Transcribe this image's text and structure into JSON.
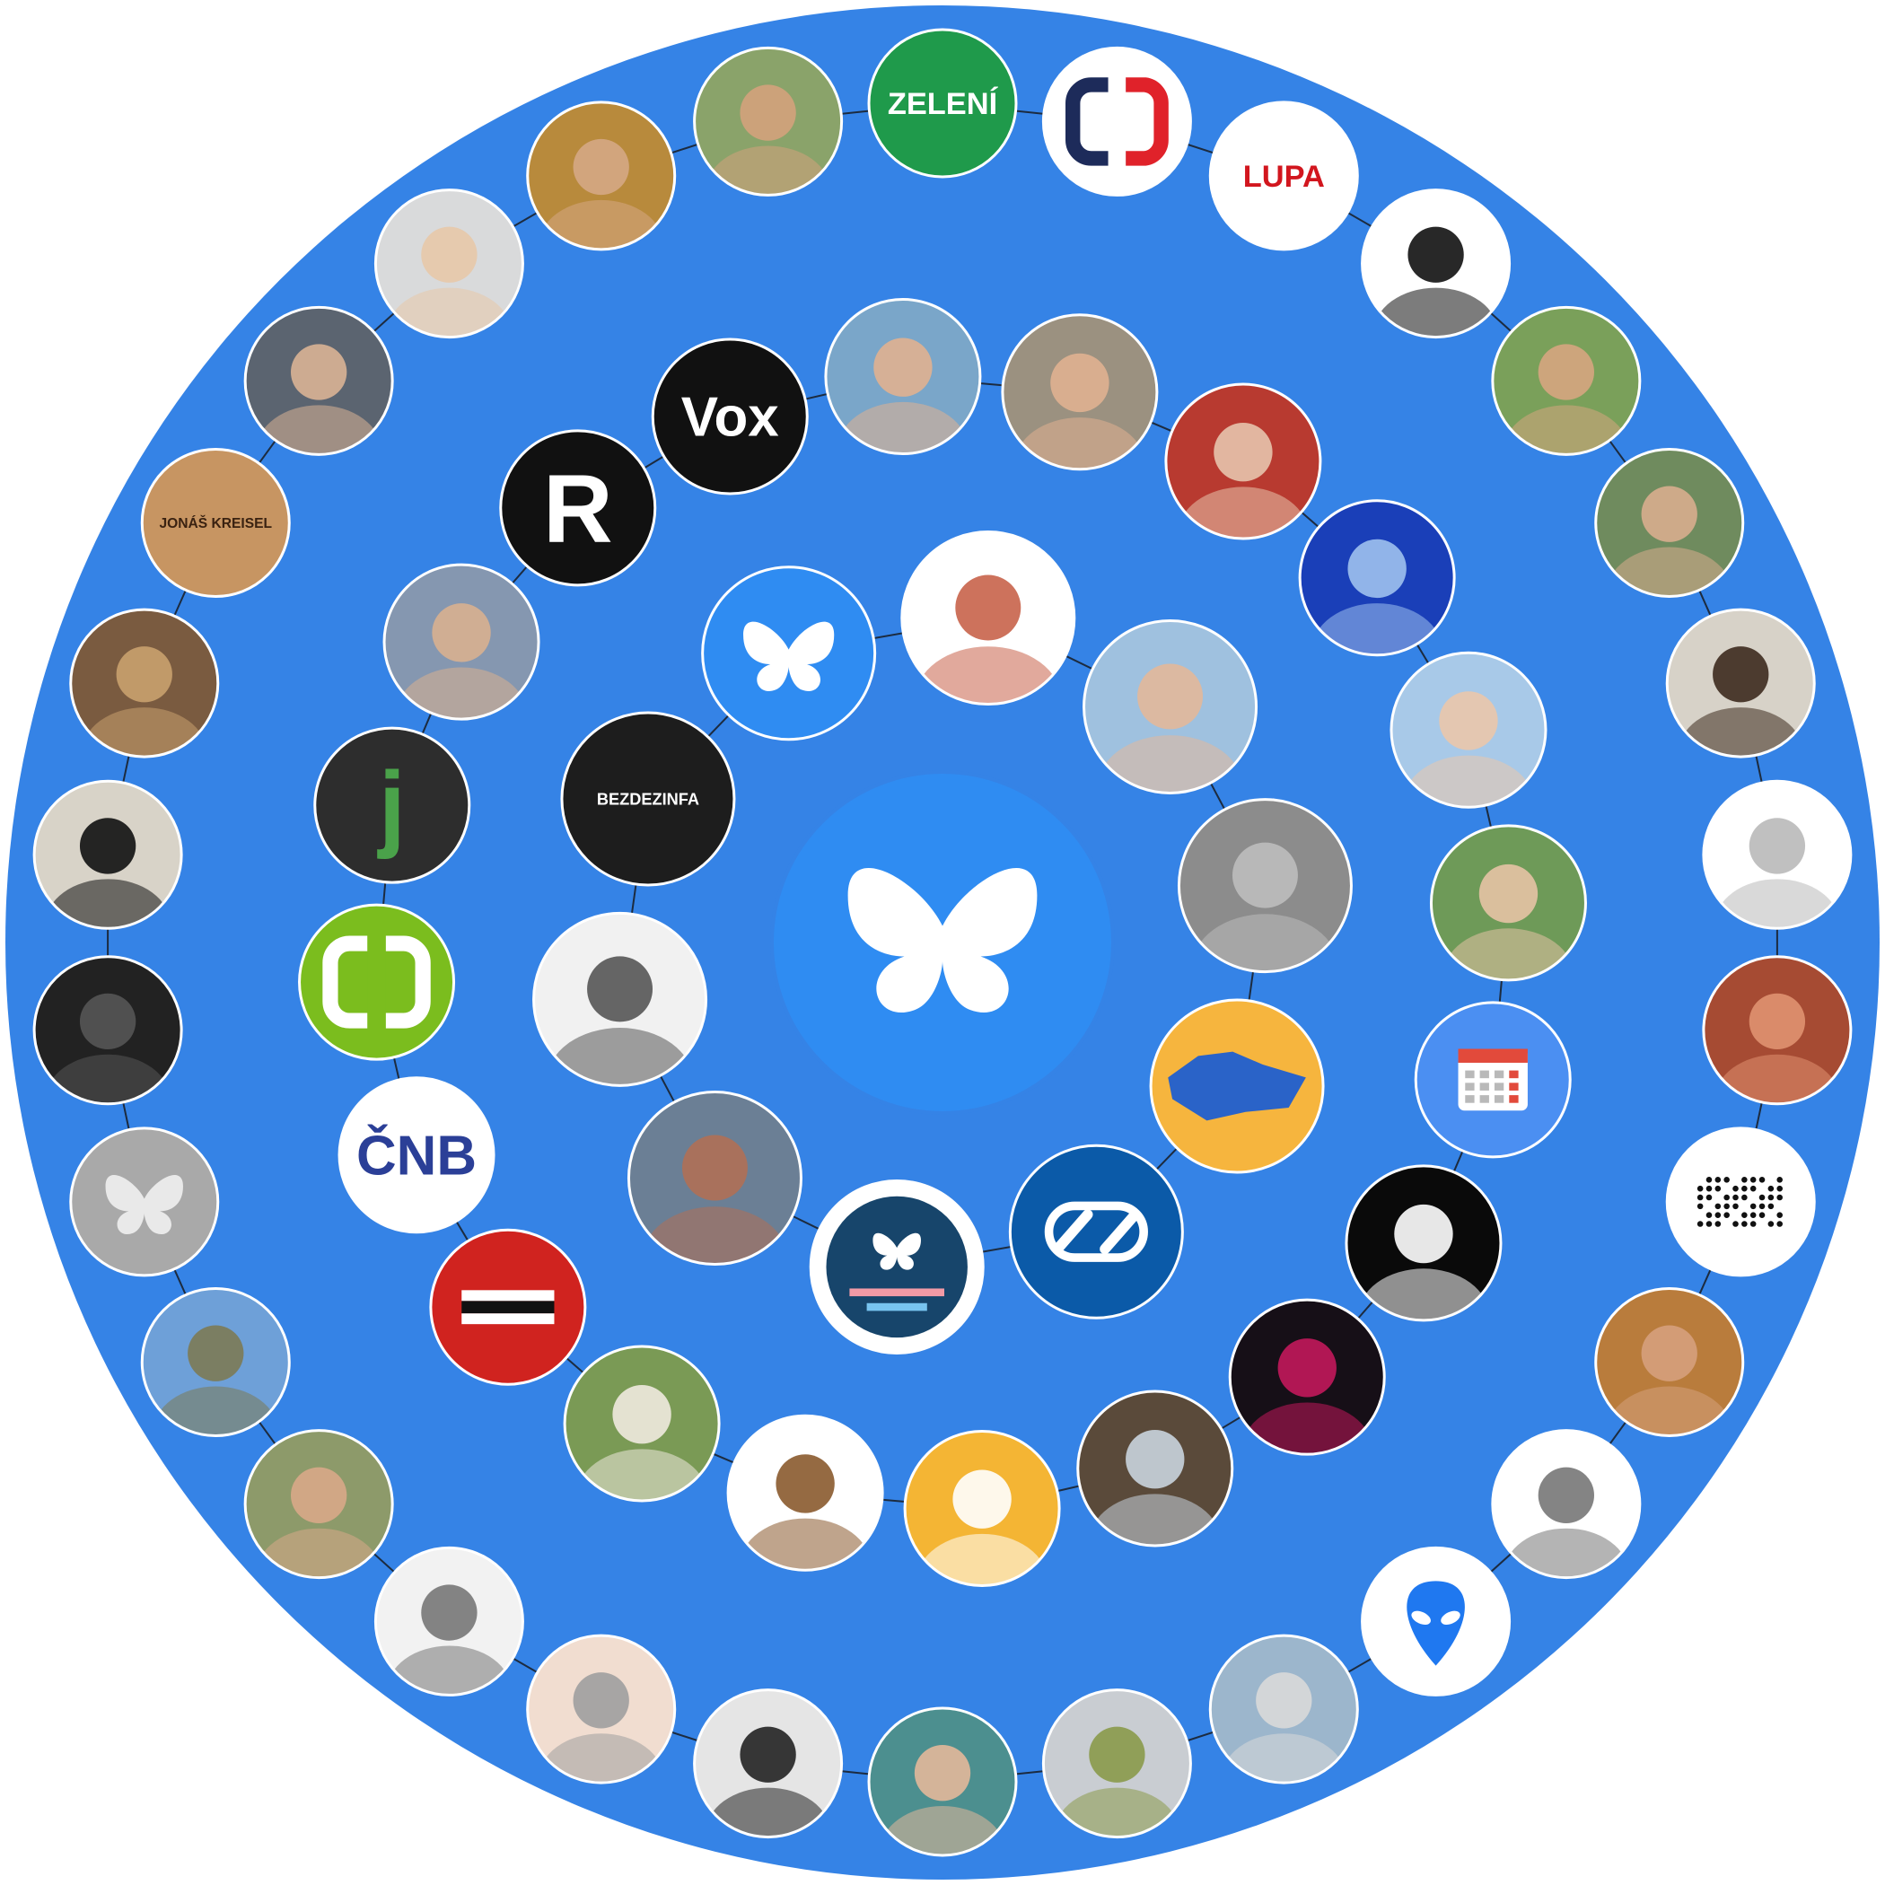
{
  "colors": {
    "background": "#ffffff",
    "disc": "#3583e6",
    "link": "#1c2b3f",
    "avatar_border": "#ffffff"
  },
  "center": {
    "name": "bluesky-center",
    "icon": "butterfly-icon"
  },
  "rings": [
    {
      "name": "inner-ring",
      "avatars": [
        {
          "id": "bluesky-logo",
          "kind": "butterfly",
          "bg": "#2f8cf2",
          "fg": "#ffffff"
        },
        {
          "id": "cartoon-cat",
          "kind": "photo",
          "bg": "#ffffff",
          "fg": "#c8634a"
        },
        {
          "id": "man-striped-shirt",
          "kind": "photo",
          "bg": "#9fc1df",
          "fg": "#e2b89a"
        },
        {
          "id": "manhole-cover",
          "kind": "photo",
          "bg": "#8c8c8c",
          "fg": "#bcbcbc"
        },
        {
          "id": "czech-map",
          "kind": "map",
          "bg": "#f6b53e",
          "fg": "#2a63c8"
        },
        {
          "id": "link-arrows",
          "kind": "arrows",
          "bg": "#0b5aa8",
          "fg": "#ffffff"
        },
        {
          "id": "blue-sky-badge",
          "kind": "badge",
          "bg": "#ffffff",
          "fg": "#17456b"
        },
        {
          "id": "pixel-face",
          "kind": "photo",
          "bg": "#6b7f95",
          "fg": "#b07055"
        },
        {
          "id": "bearded-man-bw",
          "kind": "photo",
          "bg": "#f1f1f1",
          "fg": "#555555"
        },
        {
          "id": "bezdezinfa",
          "kind": "text",
          "bg": "#1d1d1d",
          "fg": "#ffffff",
          "text": "BEZDEZINFA"
        }
      ]
    },
    {
      "name": "middle-ring",
      "avatars": [
        {
          "id": "vox",
          "kind": "text",
          "bg": "#111111",
          "fg": "#ffffff",
          "text": "Vox"
        },
        {
          "id": "man-red-eyes",
          "kind": "photo",
          "bg": "#7aa6c9",
          "fg": "#e0b190"
        },
        {
          "id": "man-railway",
          "kind": "photo",
          "bg": "#9b9180",
          "fg": "#e0b190"
        },
        {
          "id": "red-hair-woman",
          "kind": "photo",
          "bg": "#b83a30",
          "fg": "#e7c4ad"
        },
        {
          "id": "ram-glitter",
          "kind": "photo",
          "bg": "#1a3fb8",
          "fg": "#9fc1ee"
        },
        {
          "id": "young-man-long-hair",
          "kind": "photo",
          "bg": "#a8c9e8",
          "fg": "#eac7ab"
        },
        {
          "id": "woman-blue-dress",
          "kind": "photo",
          "bg": "#6e9a58",
          "fg": "#e6c3a5"
        },
        {
          "id": "calendar",
          "kind": "calendar",
          "bg": "#4b8ff2",
          "fg": "#ffffff"
        },
        {
          "id": "bird-emblem",
          "kind": "photo",
          "bg": "#0a0a0a",
          "fg": "#ffffff"
        },
        {
          "id": "anime-girl",
          "kind": "photo",
          "bg": "#160f17",
          "fg": "#c2185b"
        },
        {
          "id": "dino-eye",
          "kind": "photo",
          "bg": "#5a4a3a",
          "fg": "#c9d4de"
        },
        {
          "id": "beret-cartoon",
          "kind": "photo",
          "bg": "#f4b534",
          "fg": "#ffffff"
        },
        {
          "id": "hedgehog-cartoon",
          "kind": "photo",
          "bg": "#ffffff",
          "fg": "#8a5a2e"
        },
        {
          "id": "white-goat",
          "kind": "photo",
          "bg": "#7a9a55",
          "fg": "#efeadf"
        },
        {
          "id": "equals-flag",
          "kind": "equals",
          "bg": "#d0231f",
          "fg": "#ffffff"
        },
        {
          "id": "cnb",
          "kind": "text",
          "bg": "#ffffff",
          "fg": "#2b3f97",
          "text": "ČNB"
        },
        {
          "id": "ct-green",
          "kind": "ct",
          "bg": "#7bbd1e",
          "fg": "#ffffff"
        },
        {
          "id": "arrow-j",
          "kind": "text",
          "bg": "#2d2d2d",
          "fg": "#4aa24a",
          "text": "j"
        },
        {
          "id": "man-beanie",
          "kind": "photo",
          "bg": "#8597b0",
          "fg": "#d8b090"
        },
        {
          "id": "r-logo",
          "kind": "text",
          "bg": "#111111",
          "fg": "#ffffff",
          "text": "R"
        }
      ]
    },
    {
      "name": "outer-ring",
      "avatars": [
        {
          "id": "zeleni",
          "kind": "text",
          "bg": "#1f9a4b",
          "fg": "#ffffff",
          "text": "ZELENÍ"
        },
        {
          "id": "ct-tv",
          "kind": "ct",
          "bg": "#ffffff",
          "fg": "#1d2b5a"
        },
        {
          "id": "lupa",
          "kind": "text",
          "bg": "#ffffff",
          "fg": "#d2161e",
          "text": "LUPA"
        },
        {
          "id": "gecko-key",
          "kind": "photo",
          "bg": "#ffffff",
          "fg": "#111111"
        },
        {
          "id": "man-santa-hat",
          "kind": "photo",
          "bg": "#7aa05a",
          "fg": "#d6a57f"
        },
        {
          "id": "man-glasses-cap",
          "kind": "photo",
          "bg": "#6f8b5e",
          "fg": "#d8ad8e"
        },
        {
          "id": "bearded-portrait",
          "kind": "photo",
          "bg": "#d7d2c8",
          "fg": "#3d2a1e"
        },
        {
          "id": "window-profile",
          "kind": "photo",
          "bg": "#ffffff",
          "fg": "#b9b9b9"
        },
        {
          "id": "red-lips",
          "kind": "photo",
          "bg": "#a64b33",
          "fg": "#e09270"
        },
        {
          "id": "braille",
          "kind": "braille",
          "bg": "#ffffff",
          "fg": "#111111"
        },
        {
          "id": "man-bar",
          "kind": "photo",
          "bg": "#b97c3c",
          "fg": "#d6a07c"
        },
        {
          "id": "pub-stamp",
          "kind": "photo",
          "bg": "#ffffff",
          "fg": "#777777"
        },
        {
          "id": "alien",
          "kind": "alien",
          "bg": "#ffffff",
          "fg": "#1f78f0"
        },
        {
          "id": "camper-van",
          "kind": "photo",
          "bg": "#9cb6cc",
          "fg": "#d9d9d9"
        },
        {
          "id": "amoeba",
          "kind": "photo",
          "bg": "#c9cdd2",
          "fg": "#8a9a4a"
        },
        {
          "id": "woman-mug",
          "kind": "photo",
          "bg": "#4c8f8f",
          "fg": "#e3b89a"
        },
        {
          "id": "astronaut-mask",
          "kind": "photo",
          "bg": "#e5e5e5",
          "fg": "#222222"
        },
        {
          "id": "cartoon-grey-man",
          "kind": "photo",
          "bg": "#f1ddd0",
          "fg": "#9e9e9e"
        },
        {
          "id": "man-bw-smile",
          "kind": "photo",
          "bg": "#f2f2f2",
          "fg": "#777777"
        },
        {
          "id": "bald-man",
          "kind": "photo",
          "bg": "#8d9a6a",
          "fg": "#d8a988"
        },
        {
          "id": "eiffel-tower",
          "kind": "photo",
          "bg": "#6ea0d8",
          "fg": "#7c7a55"
        },
        {
          "id": "bluesky-grey",
          "kind": "butterfly",
          "bg": "#a9a9a9",
          "fg": "#e9e9e9"
        },
        {
          "id": "black-wolf",
          "kind": "photo",
          "bg": "#222222",
          "fg": "#555555"
        },
        {
          "id": "panda-plush",
          "kind": "photo",
          "bg": "#d8d3c8",
          "fg": "#111111"
        },
        {
          "id": "shop-shelves",
          "kind": "photo",
          "bg": "#7a5b40",
          "fg": "#c9a16e"
        },
        {
          "id": "wooden-token",
          "kind": "text",
          "bg": "#c79562",
          "fg": "#3a2211",
          "text": "JONÁŠ KREISEL"
        },
        {
          "id": "man-suit",
          "kind": "photo",
          "bg": "#5b6470",
          "fg": "#d9b295"
        },
        {
          "id": "woman-blonde-phone",
          "kind": "photo",
          "bg": "#d9dadb",
          "fg": "#e7c8a8"
        },
        {
          "id": "man-long-hair",
          "kind": "photo",
          "bg": "#b88a3c",
          "fg": "#d5a784"
        },
        {
          "id": "man-sunny",
          "kind": "photo",
          "bg": "#8aa36a",
          "fg": "#d3a27c"
        }
      ]
    }
  ]
}
